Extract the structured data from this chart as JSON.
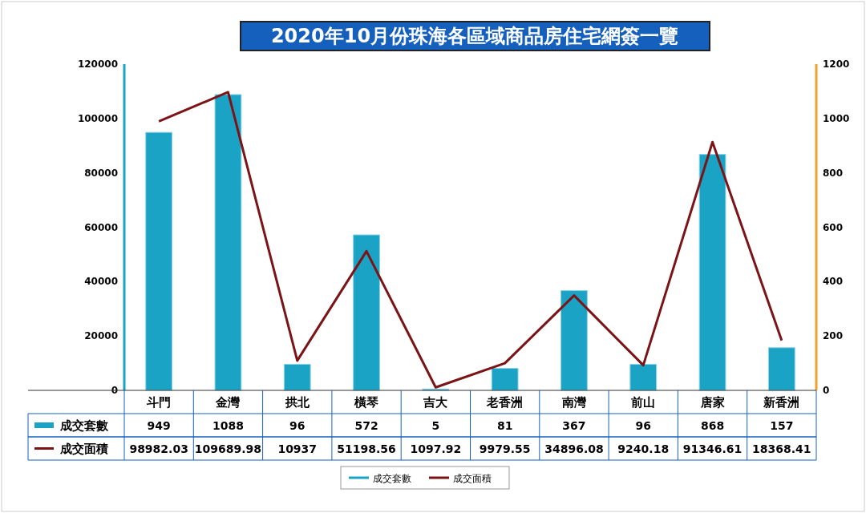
{
  "chart_data": {
    "type": "bar",
    "title": "2020年10月份珠海各區域商品房住宅網簽一覽",
    "categories": [
      "斗門",
      "金灣",
      "拱北",
      "橫琴",
      "吉大",
      "老香洲",
      "南灣",
      "前山",
      "唐家",
      "新香洲"
    ],
    "series": [
      {
        "name": "成交套數",
        "axis": "y2",
        "color": "#1ba3c6",
        "values": [
          949,
          1088,
          96,
          572,
          5,
          81,
          367,
          96,
          868,
          157
        ]
      },
      {
        "name": "成交面積",
        "type": "line",
        "color": "#7b1416",
        "values": [
          98982.03,
          109689.98,
          10937,
          51198.56,
          1097.92,
          9979.55,
          34896.08,
          9240.18,
          91346.61,
          18368.41
        ]
      }
    ],
    "ylim": [
      0,
      120000
    ],
    "yticks": [
      0,
      20000,
      40000,
      60000,
      80000,
      100000,
      120000
    ],
    "y2lim": [
      0,
      1200
    ],
    "y2ticks": [
      0,
      200,
      400,
      600,
      800,
      1000,
      1200
    ],
    "data_labels": true,
    "legend": "bottom",
    "grid": false
  }
}
